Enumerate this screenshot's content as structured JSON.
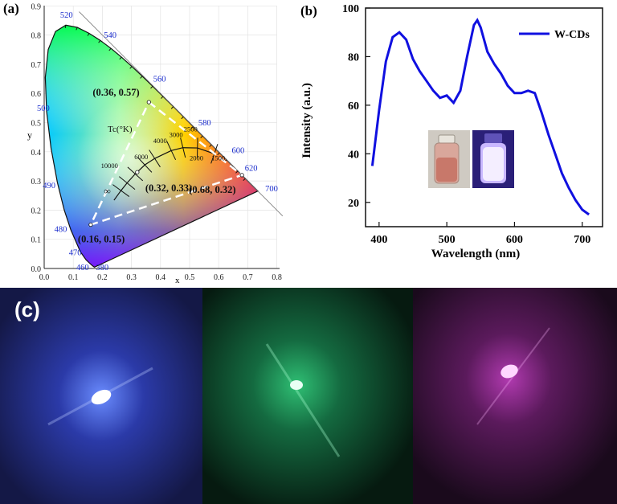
{
  "panel_a": {
    "tag": "(a)",
    "x_axis_label": "x",
    "y_axis_label": "y",
    "x_ticks": [
      "0.0",
      "0.1",
      "0.2",
      "0.3",
      "0.4",
      "0.5",
      "0.6",
      "0.7",
      "0.8"
    ],
    "y_ticks": [
      "0.0",
      "0.1",
      "0.2",
      "0.3",
      "0.4",
      "0.5",
      "0.6",
      "0.7",
      "0.8",
      "0.9"
    ],
    "wavelength_labels": [
      "380",
      "460",
      "470",
      "480",
      "490",
      "500",
      "520",
      "540",
      "560",
      "580",
      "600",
      "620",
      "700"
    ],
    "cct_axis_label": "Tc(°K)",
    "cct_labels": [
      "∞",
      "10000",
      "6000",
      "4000",
      "3000",
      "2500",
      "2000",
      "1500"
    ],
    "points": [
      {
        "label": "(0.36, 0.57)",
        "x": 0.36,
        "y": 0.57
      },
      {
        "label": "(0.32, 0.33)",
        "x": 0.32,
        "y": 0.33
      },
      {
        "label": "(0.68, 0.32)",
        "x": 0.68,
        "y": 0.32
      },
      {
        "label": "(0.16, 0.15)",
        "x": 0.16,
        "y": 0.15
      }
    ],
    "triangle_color": "#ffffff"
  },
  "panel_b": {
    "tag": "(b)",
    "legend": "W-CDs",
    "line_color": "#1010e0"
  },
  "panel_c": {
    "tag": "(c)",
    "photos": [
      {
        "name": "blue-led",
        "bg": "#1a1f6e",
        "glow": "#4a6cff"
      },
      {
        "name": "green-led",
        "bg": "#0b2f1e",
        "glow": "#29d27a"
      },
      {
        "name": "pink-led",
        "bg": "#2a0f2e",
        "glow": "#e04ee0"
      }
    ]
  },
  "chart_data": [
    {
      "type": "scatter",
      "title": "",
      "xlabel": "x",
      "ylabel": "y",
      "xlim": [
        0.0,
        0.8
      ],
      "ylim": [
        0.0,
        0.9
      ],
      "series": [
        {
          "x": [
            0.36,
            0.32,
            0.68,
            0.16
          ],
          "y": [
            0.57,
            0.33,
            0.32,
            0.15
          ]
        }
      ]
    },
    {
      "type": "line",
      "title": "",
      "xlabel": "Wavelength (nm)",
      "ylabel": "Intensity (a.u.)",
      "xlim": [
        380,
        730
      ],
      "ylim": [
        10,
        100
      ],
      "x_ticks": [
        400,
        500,
        600,
        700
      ],
      "y_ticks": [
        20,
        40,
        60,
        80,
        100
      ],
      "legend_position": "top-right",
      "series": [
        {
          "name": "W-CDs",
          "x": [
            390,
            400,
            410,
            420,
            430,
            440,
            450,
            460,
            470,
            480,
            490,
            500,
            510,
            520,
            530,
            540,
            545,
            550,
            560,
            570,
            580,
            590,
            600,
            610,
            620,
            630,
            640,
            650,
            660,
            670,
            680,
            690,
            700,
            710
          ],
          "y": [
            35,
            58,
            78,
            88,
            90,
            87,
            79,
            74,
            70,
            66,
            63,
            64,
            61,
            66,
            80,
            93,
            95,
            92,
            82,
            77,
            73,
            68,
            65,
            65,
            66,
            65,
            57,
            48,
            40,
            32,
            26,
            21,
            17,
            15
          ]
        }
      ]
    }
  ]
}
